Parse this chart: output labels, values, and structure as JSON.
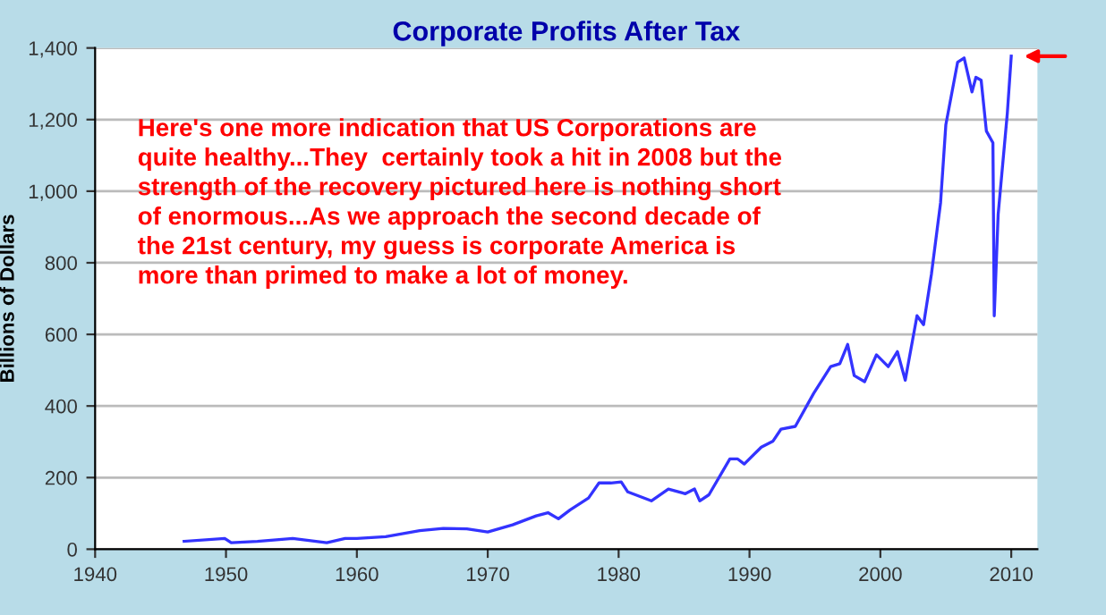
{
  "chart_data": {
    "type": "line",
    "title": "Corporate Profits After Tax",
    "ylabel": "Billions of Dollars",
    "x": [
      1946.8,
      1949.9,
      1950.4,
      1952.4,
      1955.1,
      1957.7,
      1959.1,
      1960,
      1962.2,
      1964.8,
      1966.6,
      1968.4,
      1970,
      1971.9,
      1973.7,
      1974.6,
      1975.4,
      1976.3,
      1977.7,
      1978.5,
      1979.4,
      1980.2,
      1980.7,
      1982.5,
      1983.8,
      1985.1,
      1985.8,
      1986.2,
      1986.9,
      1988.5,
      1989.1,
      1989.6,
      1990.9,
      1991.8,
      1992.4,
      1993.5,
      1994.9,
      1996.2,
      1996.9,
      1997.5,
      1998.0,
      1998.8,
      1999.7,
      2000.6,
      2001.3,
      2001.9,
      2002.8,
      2003.3,
      2003.9,
      2004.6,
      2005.0,
      2005.9,
      2006.4,
      2007.0,
      2007.3,
      2007.7,
      2008.1,
      2008.6,
      2008.7,
      2009.0,
      2009.7,
      2010.0
    ],
    "series": [
      {
        "color": "#3333ff",
        "values": [
          22,
          30,
          18,
          22,
          30,
          18,
          30,
          30,
          35,
          52,
          58,
          57,
          48,
          68,
          93,
          102,
          85,
          110,
          143,
          185,
          185,
          188,
          160,
          135,
          168,
          155,
          168,
          135,
          152,
          252,
          252,
          238,
          285,
          302,
          335,
          343,
          435,
          510,
          518,
          572,
          485,
          468,
          543,
          510,
          552,
          472,
          652,
          627,
          768,
          968,
          1185,
          1360,
          1372,
          1277,
          1318,
          1310,
          1168,
          1135,
          652,
          935,
          1218,
          1377
        ]
      }
    ],
    "xlim": [
      1940,
      2012
    ],
    "xticks": [
      1940,
      1950,
      1960,
      1970,
      1980,
      1990,
      2000,
      2010
    ],
    "ylim": [
      0,
      1400
    ],
    "yticks": [
      {
        "value": 0,
        "label": "0"
      },
      {
        "value": 200,
        "label": "200"
      },
      {
        "value": 400,
        "label": "400"
      },
      {
        "value": 600,
        "label": "600"
      },
      {
        "value": 800,
        "label": "800"
      },
      {
        "value": 1000,
        "label": "1,000"
      },
      {
        "value": 1200,
        "label": "1,200"
      },
      {
        "value": 1400,
        "label": "1,400"
      }
    ],
    "grid": "y",
    "marker": "none",
    "line_style": "solid",
    "annotations": [
      "Here's one more indication that US Corporations are quite healthy...They  certainly took a hit in 2008 but the strength of the recovery pictured here is nothing short of enormous...As we approach the second decade of the 21st century, my guess is corporate America is more than primed to make a lot of money."
    ]
  }
}
